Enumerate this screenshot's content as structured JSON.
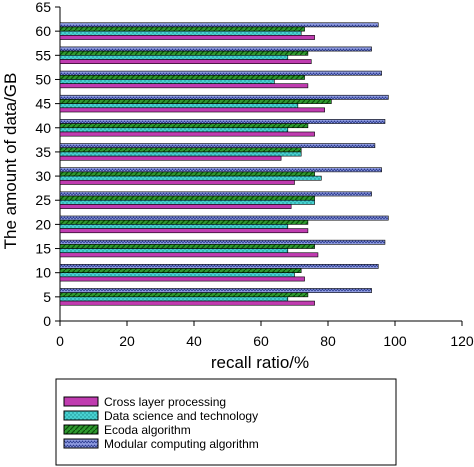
{
  "chart_data": {
    "type": "bar",
    "orientation": "horizontal",
    "title": "",
    "xlabel": "recall ratio/%",
    "ylabel": "The amount of data/GB",
    "xlim": [
      0,
      120
    ],
    "ylim": [
      0,
      65
    ],
    "xticks": [
      0,
      20,
      40,
      60,
      80,
      100,
      120
    ],
    "yticks": [
      0,
      5,
      10,
      15,
      20,
      25,
      30,
      35,
      40,
      45,
      50,
      55,
      60,
      65
    ],
    "categories": [
      5,
      10,
      15,
      20,
      25,
      30,
      35,
      40,
      45,
      50,
      55,
      60
    ],
    "grid": false,
    "legend_position": "bottom-left",
    "series": [
      {
        "name": "Cross layer processing",
        "color": "#c03cb0",
        "values": [
          76,
          73,
          77,
          74,
          69,
          70,
          66,
          76,
          79,
          74,
          75,
          76
        ]
      },
      {
        "name": "Data science and technology",
        "color": "#3fc9c9",
        "values": [
          68,
          70,
          68,
          68,
          76,
          78,
          72,
          68,
          71,
          64,
          68,
          72
        ]
      },
      {
        "name": "Ecoda algorithm",
        "color": "#2f9a2f",
        "values": [
          74,
          72,
          76,
          74,
          76,
          76,
          72,
          74,
          81,
          73,
          74,
          73
        ]
      },
      {
        "name": "Modular computing algorithm",
        "color": "#6f7fd0",
        "values": [
          93,
          95,
          97,
          98,
          93,
          96,
          94,
          97,
          98,
          96,
          93,
          95
        ]
      }
    ]
  }
}
